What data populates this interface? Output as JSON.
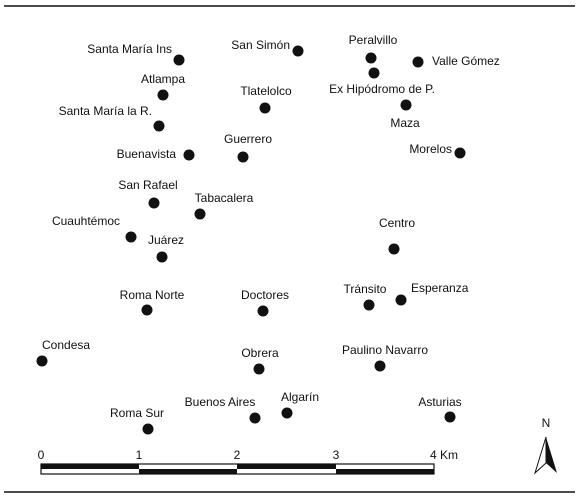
{
  "places": [
    {
      "label": "Santa María Ins"
    },
    {
      "label": "San Simón"
    },
    {
      "label": "Peralvillo"
    },
    {
      "label": "Valle Gómez"
    },
    {
      "label": "Ex Hipódromo de P."
    },
    {
      "label": "Atlampa"
    },
    {
      "label": "Tlatelolco"
    },
    {
      "label": "Maza"
    },
    {
      "label": "Santa María la R."
    },
    {
      "label": "Guerrero"
    },
    {
      "label": "Buenavista"
    },
    {
      "label": "Morelos"
    },
    {
      "label": "San Rafael"
    },
    {
      "label": "Tabacalera"
    },
    {
      "label": "Cuauhtémoc"
    },
    {
      "label": "Juárez"
    },
    {
      "label": "Centro"
    },
    {
      "label": "Roma Norte"
    },
    {
      "label": "Doctores"
    },
    {
      "label": "Tránsito"
    },
    {
      "label": "Esperanza"
    },
    {
      "label": "Condesa"
    },
    {
      "label": "Obrera"
    },
    {
      "label": "Paulino Navarro"
    },
    {
      "label": "Buenos Aires"
    },
    {
      "label": "Algarín"
    },
    {
      "label": "Asturias"
    },
    {
      "label": "Roma Sur"
    }
  ],
  "scale": {
    "ticks": [
      "0",
      "1",
      "2",
      "3",
      "4 Km"
    ]
  },
  "north": "N"
}
